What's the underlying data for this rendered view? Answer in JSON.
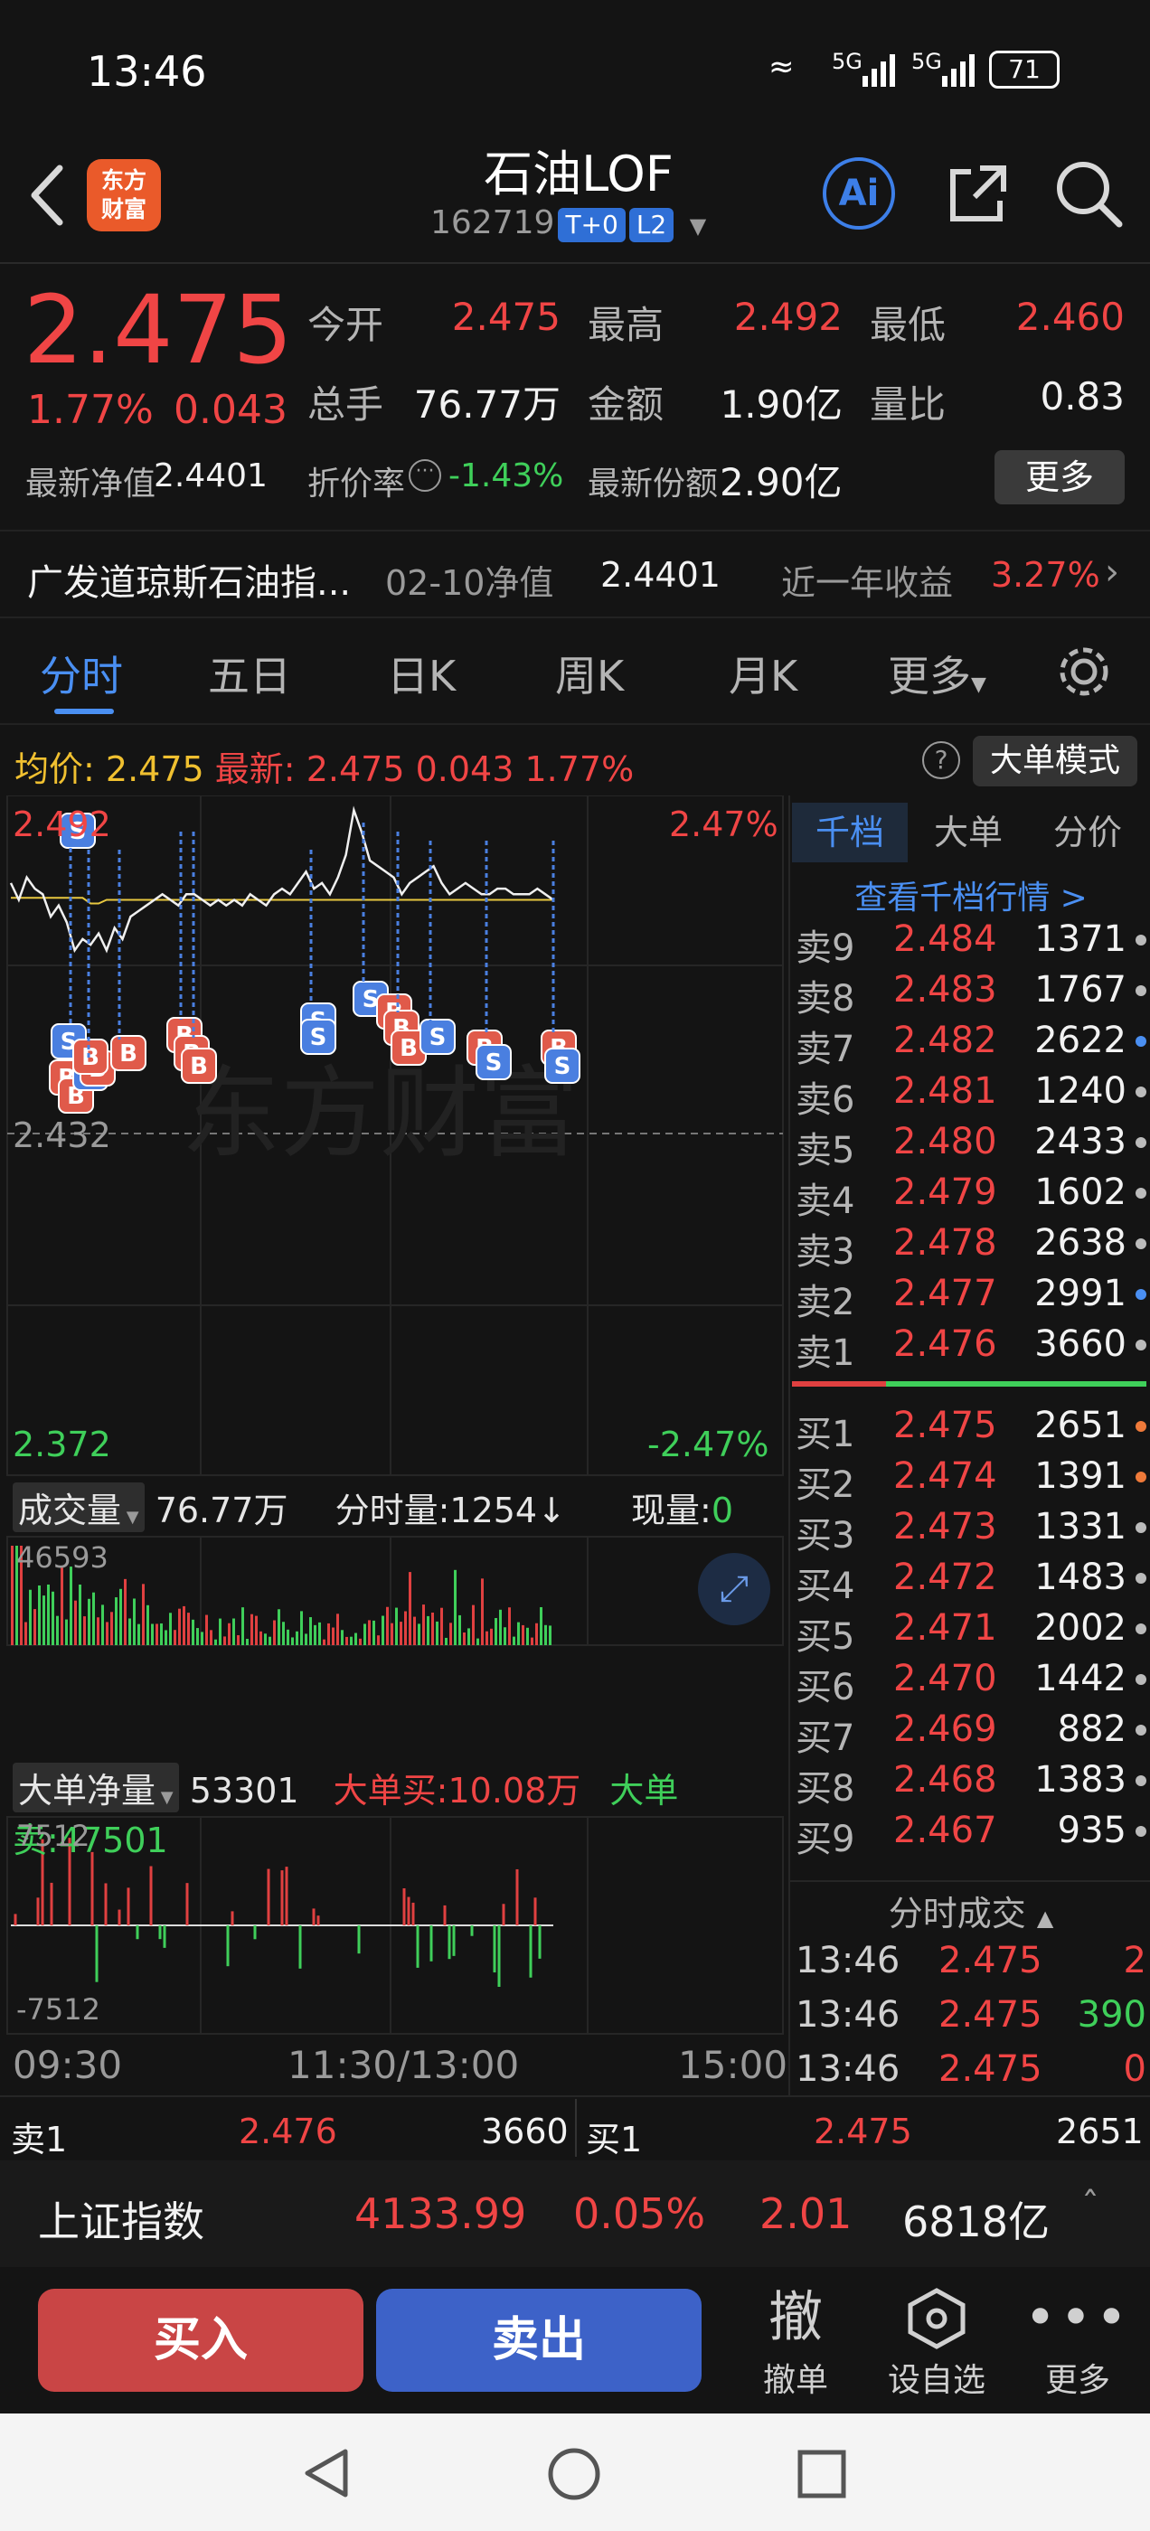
{
  "status_bar": {
    "time": "13:46",
    "signal_1": "5G",
    "signal_2": "5G",
    "battery": "71"
  },
  "header": {
    "logo_line1": "东方",
    "logo_line2": "财富",
    "name": "石油LOF",
    "code": "162719",
    "tag_t0": "T+0",
    "tag_l2": "L2",
    "ai_label": "Ai"
  },
  "quote": {
    "price": "2.475",
    "change_pct": "1.77%",
    "change": "0.043",
    "open_label": "今开",
    "open": "2.475",
    "high_label": "最高",
    "high": "2.492",
    "low_label": "最低",
    "low": "2.460",
    "volume_label": "总手",
    "volume": "76.77万",
    "amount_label": "金额",
    "amount": "1.90亿",
    "ratio_label": "量比",
    "ratio": "0.83",
    "nav_label": "最新净值",
    "nav": "2.4401",
    "discount_label": "折价率",
    "discount": "-1.43%",
    "shares_label": "最新份额",
    "shares": "2.90亿",
    "more_button": "更多"
  },
  "fund_row": {
    "name": "广发道琼斯石油指...",
    "nav_date_label": "02-10净值",
    "nav_value": "2.4401",
    "return_label": "近一年收益",
    "return_value": "3.27%"
  },
  "tabs": [
    "分时",
    "五日",
    "日K",
    "周K",
    "月K",
    "更多"
  ],
  "chart_header": {
    "avg_label": "均价:",
    "avg_value": "2.475",
    "latest_label": "最新:",
    "latest_value": "2.475",
    "latest_change": "0.043",
    "latest_pct": "1.77%",
    "help_icon": "?",
    "bigorder_mode": "大单模式"
  },
  "price_axis": {
    "top_left": "2.492",
    "top_right": "2.47%",
    "mid": "2.432",
    "bottom_left": "2.372",
    "bottom_right": "-2.47%"
  },
  "watermark": "东方财富",
  "volume_bar": {
    "selector": "成交量",
    "total": "76.77万",
    "minute_label": "分时量:",
    "minute_value": "1254",
    "minute_arrow": "↓",
    "now_label": "现量:",
    "now_value": "0",
    "max_tick": "46593"
  },
  "net_bar": {
    "selector": "大单净量",
    "value": "53301",
    "buy_label": "大单买:",
    "buy_value": "10.08万",
    "sell_label": "大单卖:",
    "sell_value": "47501",
    "top_tick": "7512",
    "bottom_tick": "-7512"
  },
  "time_axis": [
    "09:30",
    "11:30/13:00",
    "15:00"
  ],
  "right_panel": {
    "tabs": [
      "千档",
      "大单",
      "分价"
    ],
    "link": "查看千档行情 >",
    "asks": [
      {
        "label": "卖9",
        "price": "2.484",
        "vol": "1371",
        "dot": "#bbbbbb"
      },
      {
        "label": "卖8",
        "price": "2.483",
        "vol": "1767",
        "dot": "#bbbbbb"
      },
      {
        "label": "卖7",
        "price": "2.482",
        "vol": "2622",
        "dot": "#4a8ff2"
      },
      {
        "label": "卖6",
        "price": "2.481",
        "vol": "1240",
        "dot": "#bbbbbb"
      },
      {
        "label": "卖5",
        "price": "2.480",
        "vol": "2433",
        "dot": "#bbbbbb"
      },
      {
        "label": "卖4",
        "price": "2.479",
        "vol": "1602",
        "dot": "#bbbbbb"
      },
      {
        "label": "卖3",
        "price": "2.478",
        "vol": "2638",
        "dot": "#bbbbbb"
      },
      {
        "label": "卖2",
        "price": "2.477",
        "vol": "2991",
        "dot": "#4a8ff2"
      },
      {
        "label": "卖1",
        "price": "2.476",
        "vol": "3660",
        "dot": "#bbbbbb"
      }
    ],
    "bids": [
      {
        "label": "买1",
        "price": "2.475",
        "vol": "2651",
        "dot": "#ef7a3a"
      },
      {
        "label": "买2",
        "price": "2.474",
        "vol": "1391",
        "dot": "#ef7a3a"
      },
      {
        "label": "买3",
        "price": "2.473",
        "vol": "1331",
        "dot": "#bbbbbb"
      },
      {
        "label": "买4",
        "price": "2.472",
        "vol": "1483",
        "dot": "#bbbbbb"
      },
      {
        "label": "买5",
        "price": "2.471",
        "vol": "2002",
        "dot": "#bbbbbb"
      },
      {
        "label": "买6",
        "price": "2.470",
        "vol": "1442",
        "dot": "#bbbbbb"
      },
      {
        "label": "买7",
        "price": "2.469",
        "vol": "882",
        "dot": "#bbbbbb"
      },
      {
        "label": "买8",
        "price": "2.468",
        "vol": "1383",
        "dot": "#bbbbbb"
      },
      {
        "label": "买9",
        "price": "2.467",
        "vol": "935",
        "dot": "#bbbbbb"
      }
    ],
    "trades_title": "分时成交",
    "trades": [
      {
        "time": "13:46",
        "price": "2.475",
        "vol": "2",
        "color": "#f04545"
      },
      {
        "time": "13:46",
        "price": "2.475",
        "vol": "390",
        "color": "#3fcf5a"
      },
      {
        "time": "13:46",
        "price": "2.475",
        "vol": "0",
        "color": "#f04545"
      }
    ]
  },
  "bottom_level": {
    "ask_label": "卖1",
    "ask_price": "2.476",
    "ask_vol": "3660",
    "bid_label": "买1",
    "bid_price": "2.475",
    "bid_vol": "2651"
  },
  "index_bar": {
    "name": "上证指数",
    "value": "4133.99",
    "pct": "0.05%",
    "change": "2.01",
    "amount": "6818亿"
  },
  "actions": {
    "buy": "买入",
    "sell": "卖出",
    "cancel_icon": "撤",
    "cancel": "撤单",
    "watch": "设自选",
    "more": "更多"
  },
  "colors": {
    "up": "#f04545",
    "down": "#3fcf5a",
    "accent": "#4a8ff2",
    "bg": "#141414"
  }
}
